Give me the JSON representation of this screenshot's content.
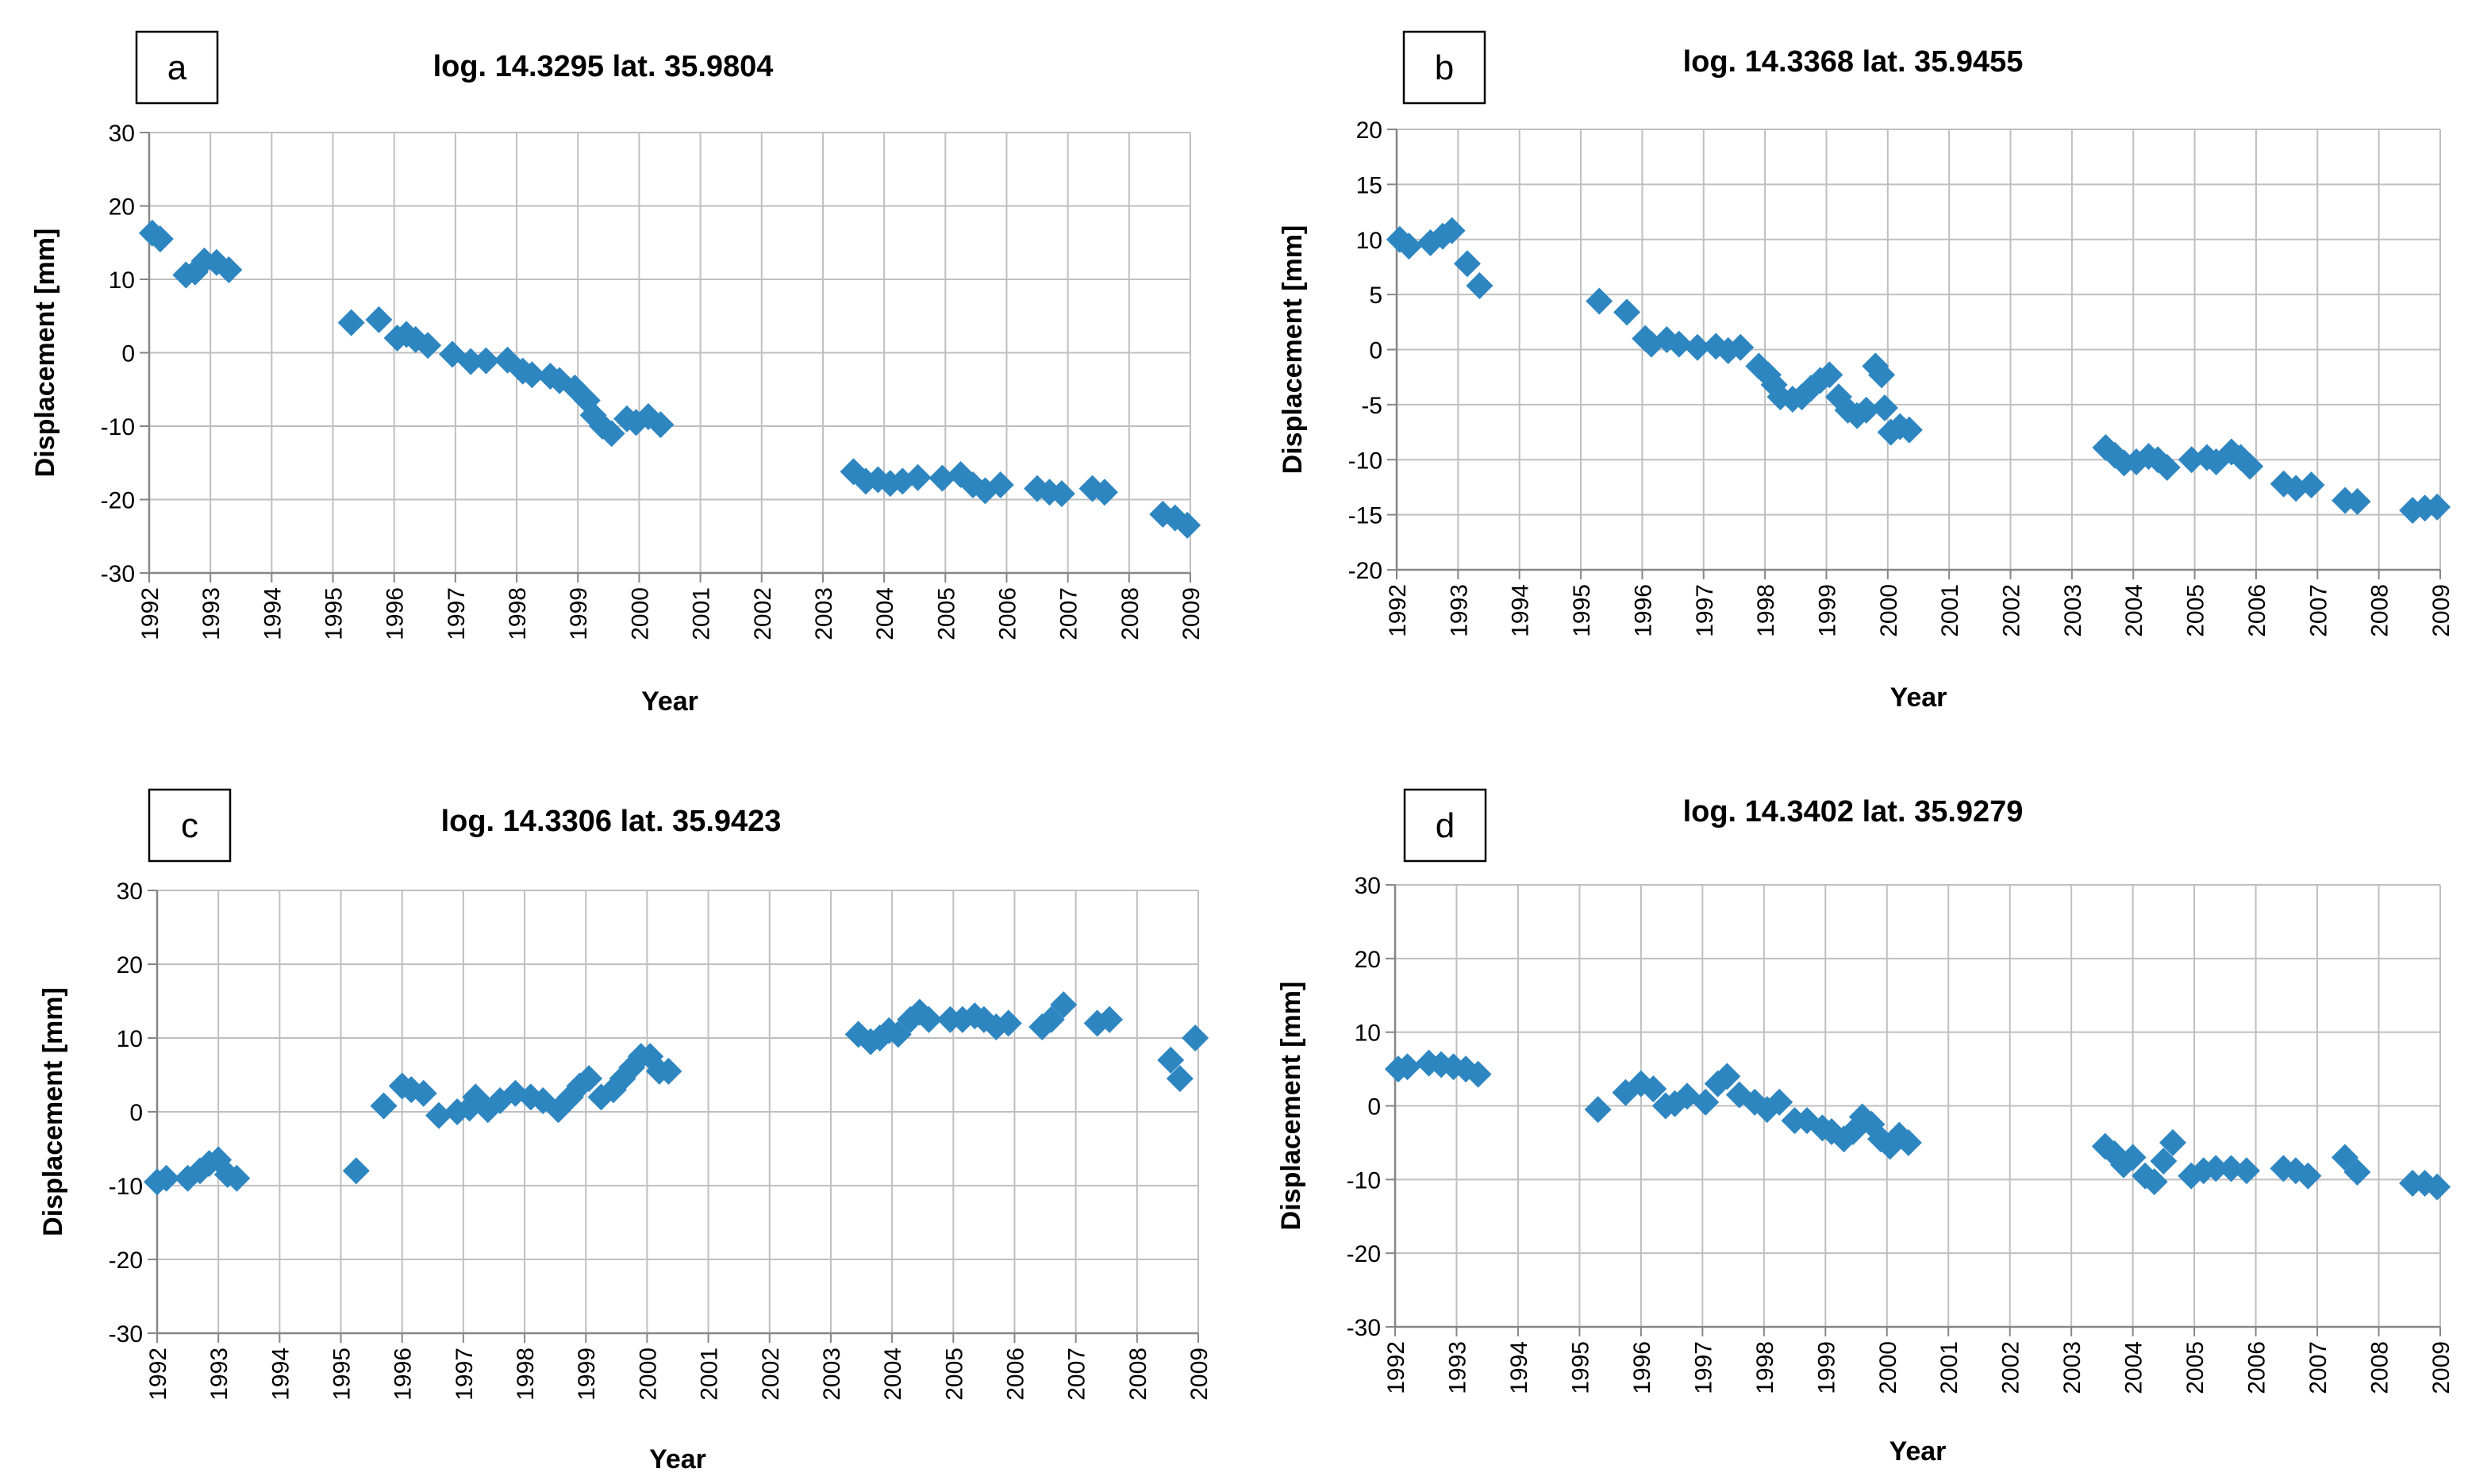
{
  "colors": {
    "marker": "#2E86C1",
    "grid": "#BFBFBF",
    "axis": "#868686"
  },
  "chart_data": [
    {
      "id": "a",
      "type": "scatter",
      "panel_label": "a",
      "title": "log. 14.3295 lat. 35.9804",
      "xlabel": "Year",
      "ylabel": "Displacement [mm]",
      "xlim": [
        1992,
        2009
      ],
      "ylim": [
        -30,
        30
      ],
      "x_ticks": [
        "1992",
        "1993",
        "1994",
        "1995",
        "1996",
        "1997",
        "1998",
        "1999",
        "2000",
        "2001",
        "2002",
        "2003",
        "2004",
        "2005",
        "2006",
        "2007",
        "2008",
        "2009"
      ],
      "y_ticks": [
        "30",
        "20",
        "10",
        "0",
        "-10",
        "-20",
        "-30"
      ],
      "points": [
        [
          1992.05,
          16.3
        ],
        [
          1992.18,
          15.5
        ],
        [
          1992.6,
          10.6
        ],
        [
          1992.75,
          11
        ],
        [
          1992.9,
          12.5
        ],
        [
          1993.1,
          12.3
        ],
        [
          1993.3,
          11.3
        ],
        [
          1995.3,
          4.1
        ],
        [
          1995.75,
          4.5
        ],
        [
          1996.05,
          2
        ],
        [
          1996.2,
          2.5
        ],
        [
          1996.35,
          1.8
        ],
        [
          1996.55,
          1
        ],
        [
          1996.95,
          -0.2
        ],
        [
          1997.25,
          -1.2
        ],
        [
          1997.5,
          -1.1
        ],
        [
          1997.85,
          -1
        ],
        [
          1998.1,
          -2.5
        ],
        [
          1998.25,
          -3
        ],
        [
          1998.55,
          -3.2
        ],
        [
          1998.7,
          -3.8
        ],
        [
          1998.95,
          -4.8
        ],
        [
          1999.15,
          -6.5
        ],
        [
          1999.25,
          -8.5
        ],
        [
          1999.4,
          -10
        ],
        [
          1999.55,
          -11
        ],
        [
          1999.8,
          -9
        ],
        [
          1999.95,
          -9.5
        ],
        [
          2000.15,
          -8.7
        ],
        [
          2000.35,
          -9.8
        ],
        [
          2003.5,
          -16.2
        ],
        [
          2003.7,
          -17.5
        ],
        [
          2003.9,
          -17.3
        ],
        [
          2004.1,
          -17.8
        ],
        [
          2004.3,
          -17.5
        ],
        [
          2004.55,
          -17
        ],
        [
          2004.95,
          -17.1
        ],
        [
          2005.25,
          -16.6
        ],
        [
          2005.45,
          -18
        ],
        [
          2005.65,
          -18.8
        ],
        [
          2005.9,
          -18
        ],
        [
          2006.5,
          -18.5
        ],
        [
          2006.7,
          -19
        ],
        [
          2006.9,
          -19.2
        ],
        [
          2007.4,
          -18.5
        ],
        [
          2007.6,
          -19
        ],
        [
          2008.55,
          -22
        ],
        [
          2008.75,
          -22.5
        ],
        [
          2008.95,
          -23.5
        ]
      ]
    },
    {
      "id": "b",
      "type": "scatter",
      "panel_label": "b",
      "title": "log. 14.3368 lat. 35.9455",
      "xlabel": "Year",
      "ylabel": "Displacement [mm]",
      "xlim": [
        1992,
        2009
      ],
      "ylim": [
        -20,
        20
      ],
      "x_ticks": [
        "1992",
        "1993",
        "1994",
        "1995",
        "1996",
        "1997",
        "1998",
        "1999",
        "2000",
        "2001",
        "2002",
        "2003",
        "2004",
        "2005",
        "2006",
        "2007",
        "2008",
        "2009"
      ],
      "y_ticks": [
        "20",
        "15",
        "10",
        "5",
        "0",
        "-5",
        "-10",
        "-15",
        "-20"
      ],
      "points": [
        [
          1992.05,
          10
        ],
        [
          1992.2,
          9.4
        ],
        [
          1992.55,
          9.7
        ],
        [
          1992.75,
          10.3
        ],
        [
          1992.9,
          10.8
        ],
        [
          1993.15,
          7.8
        ],
        [
          1993.35,
          5.8
        ],
        [
          1995.3,
          4.4
        ],
        [
          1995.75,
          3.4
        ],
        [
          1996.05,
          1
        ],
        [
          1996.15,
          0.5
        ],
        [
          1996.4,
          0.9
        ],
        [
          1996.6,
          0.5
        ],
        [
          1996.9,
          0.2
        ],
        [
          1997.2,
          0.3
        ],
        [
          1997.4,
          -0.1
        ],
        [
          1997.6,
          0.2
        ],
        [
          1997.9,
          -1.5
        ],
        [
          1998.05,
          -2.3
        ],
        [
          1998.15,
          -3.2
        ],
        [
          1998.25,
          -4.3
        ],
        [
          1998.45,
          -4.5
        ],
        [
          1998.6,
          -4.3
        ],
        [
          1998.75,
          -3.5
        ],
        [
          1998.9,
          -2.8
        ],
        [
          1999.05,
          -2.3
        ],
        [
          1999.2,
          -4.3
        ],
        [
          1999.35,
          -5.5
        ],
        [
          1999.5,
          -6
        ],
        [
          1999.65,
          -5.5
        ],
        [
          1999.8,
          -1.5
        ],
        [
          1999.9,
          -2.3
        ],
        [
          1999.95,
          -5.3
        ],
        [
          2000.05,
          -7.5
        ],
        [
          2000.2,
          -7
        ],
        [
          2000.35,
          -7.3
        ],
        [
          2003.55,
          -8.9
        ],
        [
          2003.7,
          -9.6
        ],
        [
          2003.85,
          -10.3
        ],
        [
          2004.05,
          -10.2
        ],
        [
          2004.25,
          -9.7
        ],
        [
          2004.4,
          -10
        ],
        [
          2004.55,
          -10.7
        ],
        [
          2004.95,
          -10
        ],
        [
          2005.2,
          -9.8
        ],
        [
          2005.35,
          -10.2
        ],
        [
          2005.6,
          -9.3
        ],
        [
          2005.75,
          -9.8
        ],
        [
          2005.9,
          -10.6
        ],
        [
          2006.45,
          -12.2
        ],
        [
          2006.65,
          -12.6
        ],
        [
          2006.9,
          -12.3
        ],
        [
          2007.45,
          -13.7
        ],
        [
          2007.65,
          -13.8
        ],
        [
          2008.55,
          -14.6
        ],
        [
          2008.75,
          -14.4
        ],
        [
          2008.95,
          -14.3
        ]
      ]
    },
    {
      "id": "c",
      "type": "scatter",
      "panel_label": "c",
      "title": "log. 14.3306 lat. 35.9423",
      "xlabel": "Year",
      "ylabel": "Displacement [mm]",
      "xlim": [
        1992,
        2009
      ],
      "ylim": [
        -30,
        30
      ],
      "x_ticks": [
        "1992",
        "1993",
        "1994",
        "1995",
        "1996",
        "1997",
        "1998",
        "1999",
        "2000",
        "2001",
        "2002",
        "2003",
        "2004",
        "2005",
        "2006",
        "2007",
        "2008",
        "2009"
      ],
      "y_ticks": [
        "30",
        "20",
        "10",
        "0",
        "-10",
        "-20",
        "-30"
      ],
      "points": [
        [
          1992.0,
          -9.5
        ],
        [
          1992.15,
          -9
        ],
        [
          1992.5,
          -9
        ],
        [
          1992.7,
          -8
        ],
        [
          1992.85,
          -7
        ],
        [
          1993.0,
          -6.5
        ],
        [
          1993.15,
          -8.5
        ],
        [
          1993.3,
          -9
        ],
        [
          1995.25,
          -8
        ],
        [
          1995.7,
          0.8
        ],
        [
          1996.0,
          3.5
        ],
        [
          1996.15,
          3
        ],
        [
          1996.35,
          2.5
        ],
        [
          1996.6,
          -0.5
        ],
        [
          1996.9,
          0
        ],
        [
          1997.1,
          0.5
        ],
        [
          1997.2,
          2
        ],
        [
          1997.4,
          0.3
        ],
        [
          1997.6,
          1.5
        ],
        [
          1997.85,
          2.5
        ],
        [
          1998.1,
          2
        ],
        [
          1998.3,
          1.5
        ],
        [
          1998.55,
          0.3
        ],
        [
          1998.75,
          2
        ],
        [
          1998.9,
          3.5
        ],
        [
          1999.05,
          4.5
        ],
        [
          1999.25,
          2
        ],
        [
          1999.45,
          3
        ],
        [
          1999.6,
          4.5
        ],
        [
          1999.75,
          6
        ],
        [
          1999.9,
          7.5
        ],
        [
          2000.05,
          7.5
        ],
        [
          2000.2,
          5.5
        ],
        [
          2000.35,
          5.5
        ],
        [
          2003.45,
          10.5
        ],
        [
          2003.65,
          9.5
        ],
        [
          2003.8,
          10
        ],
        [
          2003.95,
          11
        ],
        [
          2004.1,
          10.5
        ],
        [
          2004.3,
          12.5
        ],
        [
          2004.45,
          13.5
        ],
        [
          2004.6,
          12.5
        ],
        [
          2004.95,
          12.5
        ],
        [
          2005.15,
          12.5
        ],
        [
          2005.35,
          13
        ],
        [
          2005.5,
          12.5
        ],
        [
          2005.7,
          11.5
        ],
        [
          2005.9,
          12
        ],
        [
          2006.45,
          11.5
        ],
        [
          2006.6,
          12.5
        ],
        [
          2006.8,
          14.5
        ],
        [
          2007.35,
          12
        ],
        [
          2007.55,
          12.5
        ],
        [
          2008.55,
          7
        ],
        [
          2008.7,
          4.5
        ],
        [
          2008.95,
          10
        ]
      ]
    },
    {
      "id": "d",
      "type": "scatter",
      "panel_label": "d",
      "title": "log. 14.3402 lat. 35.9279",
      "xlabel": "Year",
      "ylabel": "Displacement [mm]",
      "xlim": [
        1992,
        2009
      ],
      "ylim": [
        -30,
        30
      ],
      "x_ticks": [
        "1992",
        "1993",
        "1994",
        "1995",
        "1996",
        "1997",
        "1998",
        "1999",
        "2000",
        "2001",
        "2002",
        "2003",
        "2004",
        "2005",
        "2006",
        "2007",
        "2008",
        "2009"
      ],
      "y_ticks": [
        "30",
        "20",
        "10",
        "0",
        "-10",
        "-20",
        "-30"
      ],
      "points": [
        [
          1992.05,
          5
        ],
        [
          1992.2,
          5.3
        ],
        [
          1992.55,
          5.8
        ],
        [
          1992.75,
          5.6
        ],
        [
          1992.95,
          5.3
        ],
        [
          1993.15,
          5
        ],
        [
          1993.35,
          4.3
        ],
        [
          1995.3,
          -0.5
        ],
        [
          1995.75,
          1.8
        ],
        [
          1996.0,
          3
        ],
        [
          1996.2,
          2.3
        ],
        [
          1996.4,
          0
        ],
        [
          1996.55,
          0.3
        ],
        [
          1996.75,
          1.3
        ],
        [
          1997.05,
          0.5
        ],
        [
          1997.25,
          3
        ],
        [
          1997.4,
          4
        ],
        [
          1997.6,
          1.5
        ],
        [
          1997.85,
          0.5
        ],
        [
          1998.05,
          -0.5
        ],
        [
          1998.25,
          0.5
        ],
        [
          1998.5,
          -2
        ],
        [
          1998.7,
          -2
        ],
        [
          1998.95,
          -3
        ],
        [
          1999.1,
          -3.5
        ],
        [
          1999.3,
          -4.5
        ],
        [
          1999.45,
          -3.5
        ],
        [
          1999.6,
          -1.5
        ],
        [
          1999.75,
          -2.5
        ],
        [
          1999.9,
          -4.5
        ],
        [
          2000.05,
          -5.5
        ],
        [
          2000.2,
          -4
        ],
        [
          2000.35,
          -5
        ],
        [
          2003.55,
          -5.5
        ],
        [
          2003.7,
          -6.5
        ],
        [
          2003.85,
          -8
        ],
        [
          2004.0,
          -7
        ],
        [
          2004.2,
          -9.5
        ],
        [
          2004.35,
          -10.3
        ],
        [
          2004.5,
          -7.5
        ],
        [
          2004.65,
          -5
        ],
        [
          2004.95,
          -9.5
        ],
        [
          2005.15,
          -8.8
        ],
        [
          2005.35,
          -8.5
        ],
        [
          2005.6,
          -8.5
        ],
        [
          2005.85,
          -8.8
        ],
        [
          2006.45,
          -8.5
        ],
        [
          2006.65,
          -8.8
        ],
        [
          2006.85,
          -9.5
        ],
        [
          2007.45,
          -7
        ],
        [
          2007.65,
          -9
        ],
        [
          2008.55,
          -10.5
        ],
        [
          2008.75,
          -10.5
        ],
        [
          2008.95,
          -11
        ]
      ]
    }
  ]
}
